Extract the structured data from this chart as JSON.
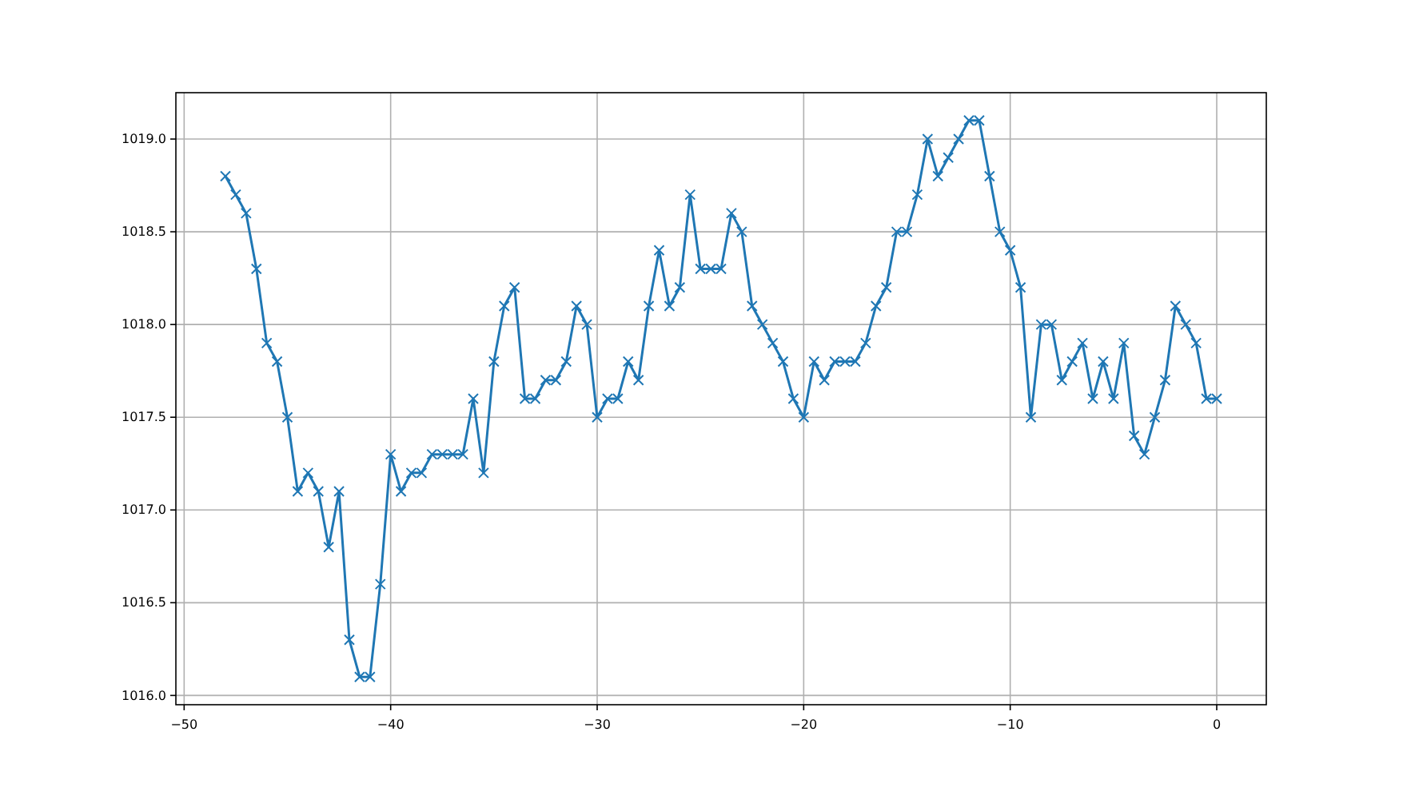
{
  "chart_data": {
    "type": "line",
    "x": [
      -48,
      -47.5,
      -47,
      -46.5,
      -46,
      -45.5,
      -45,
      -44.5,
      -44,
      -43.5,
      -43,
      -42.5,
      -42,
      -41.5,
      -41,
      -40.5,
      -40,
      -39.5,
      -39,
      -38.5,
      -38,
      -37.5,
      -37,
      -36.5,
      -36,
      -35.5,
      -35,
      -34.5,
      -34,
      -33.5,
      -33,
      -32.5,
      -32,
      -31.5,
      -31,
      -30.5,
      -30,
      -29.5,
      -29,
      -28.5,
      -28,
      -27.5,
      -27,
      -26.5,
      -26,
      -25.5,
      -25,
      -24.5,
      -24,
      -23.5,
      -23,
      -22.5,
      -22,
      -21.5,
      -21,
      -20.5,
      -20,
      -19.5,
      -19,
      -18.5,
      -18,
      -17.5,
      -17,
      -16.5,
      -16,
      -15.5,
      -15,
      -14.5,
      -14,
      -13.5,
      -13,
      -12.5,
      -12,
      -11.5,
      -11,
      -10.5,
      -10,
      -9.5,
      -9,
      -8.5,
      -8,
      -7.5,
      -7,
      -6.5,
      -6,
      -5.5,
      -5,
      -4.5,
      -4,
      -3.5,
      -3,
      -2.5,
      -2,
      -1.5,
      -1,
      -0.5,
      0
    ],
    "series": [
      {
        "color": "#1f77b4",
        "values": [
          1018.8,
          1018.7,
          1018.6,
          1018.3,
          1017.9,
          1017.8,
          1017.5,
          1017.1,
          1017.2,
          1017.1,
          1016.8,
          1017.1,
          1016.3,
          1016.1,
          1016.1,
          1016.6,
          1017.3,
          1017.1,
          1017.2,
          1017.2,
          1017.3,
          1017.3,
          1017.3,
          1017.3,
          1017.6,
          1017.2,
          1017.8,
          1018.1,
          1018.2,
          1017.6,
          1017.6,
          1017.7,
          1017.7,
          1017.8,
          1018.1,
          1018.0,
          1017.5,
          1017.6,
          1017.6,
          1017.8,
          1017.7,
          1018.1,
          1018.4,
          1018.1,
          1018.2,
          1018.7,
          1018.3,
          1018.3,
          1018.3,
          1018.6,
          1018.5,
          1018.1,
          1018.0,
          1017.9,
          1017.8,
          1017.6,
          1017.5,
          1017.8,
          1017.7,
          1017.8,
          1017.8,
          1017.8,
          1017.9,
          1018.1,
          1018.2,
          1018.5,
          1018.5,
          1018.7,
          1019.0,
          1018.8,
          1018.9,
          1019.0,
          1019.1,
          1019.1,
          1018.8,
          1018.5,
          1018.4,
          1018.2,
          1017.5,
          1018.0,
          1018.0,
          1017.7,
          1017.8,
          1017.9,
          1017.6,
          1017.8,
          1017.6,
          1017.9,
          1017.4,
          1017.3,
          1017.5,
          1017.7,
          1018.1,
          1018.0,
          1017.9,
          1017.6,
          1017.6
        ]
      }
    ],
    "xlim": [
      -50.4,
      2.4
    ],
    "xticks": [
      -50,
      -40,
      -30,
      -20,
      -10,
      0
    ],
    "ylim": [
      1015.95,
      1019.25
    ],
    "yticks": [
      {
        "value": 1016,
        "label": "1016.0"
      },
      {
        "value": 1016.5,
        "label": "1016.5"
      },
      {
        "value": 1017,
        "label": "1017.0"
      },
      {
        "value": 1017.5,
        "label": "1017.5"
      },
      {
        "value": 1018,
        "label": "1018.0"
      },
      {
        "value": 1018.5,
        "label": "1018.5"
      },
      {
        "value": 1019,
        "label": "1019.0"
      }
    ],
    "grid": true,
    "marker": "cross",
    "line_style": "solid"
  }
}
